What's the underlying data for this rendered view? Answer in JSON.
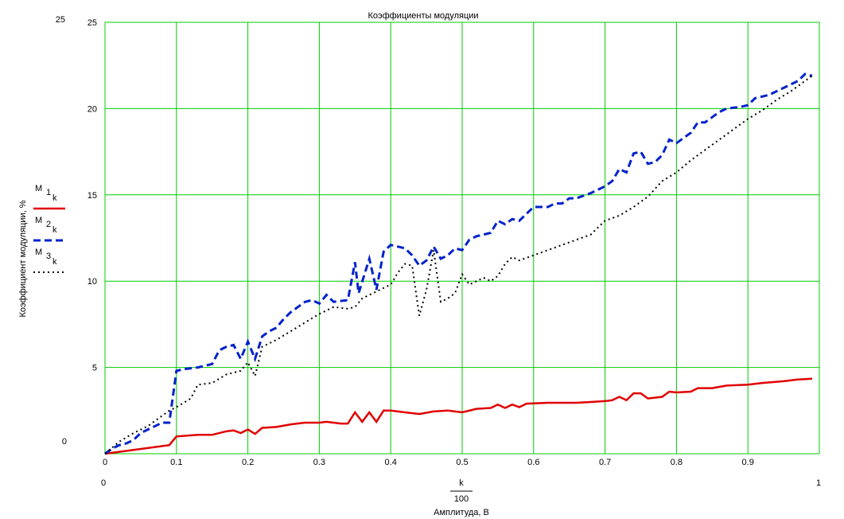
{
  "chart_data": {
    "type": "line",
    "title": "Коэффициенты модуляции",
    "y_label": "Коэффициент модуляции, %",
    "x_label_fraction": {
      "numerator": "k",
      "denominator": "100"
    },
    "x_label": "Амплитуда, В",
    "xlim": [
      0,
      1
    ],
    "ylim": [
      0,
      25
    ],
    "xticks": [
      0,
      0.1,
      0.2,
      0.3,
      0.4,
      0.5,
      0.6,
      0.7,
      0.8,
      0.9
    ],
    "yticks": [
      5,
      10,
      15,
      20,
      25
    ],
    "grid": true,
    "grid_color": "#00cc00",
    "legend": "left",
    "series": [
      {
        "name": "M",
        "name_subscripts": [
          "1",
          "k"
        ],
        "color": "#e00000",
        "dash": "solid",
        "x": [
          0,
          0.09,
          0.1,
          0.13,
          0.15,
          0.17,
          0.18,
          0.19,
          0.2,
          0.21,
          0.22,
          0.24,
          0.26,
          0.28,
          0.3,
          0.31,
          0.33,
          0.34,
          0.35,
          0.36,
          0.37,
          0.38,
          0.39,
          0.4,
          0.42,
          0.44,
          0.46,
          0.48,
          0.5,
          0.52,
          0.54,
          0.55,
          0.56,
          0.57,
          0.58,
          0.59,
          0.62,
          0.66,
          0.68,
          0.7,
          0.71,
          0.72,
          0.73,
          0.74,
          0.75,
          0.76,
          0.78,
          0.79,
          0.8,
          0.82,
          0.83,
          0.85,
          0.87,
          0.9,
          0.92,
          0.95,
          0.97,
          0.99
        ],
        "values": [
          0,
          0.5,
          1.0,
          1.1,
          1.1,
          1.3,
          1.35,
          1.2,
          1.4,
          1.15,
          1.5,
          1.55,
          1.7,
          1.8,
          1.8,
          1.85,
          1.75,
          1.75,
          2.4,
          1.85,
          2.4,
          1.85,
          2.5,
          2.5,
          2.4,
          2.3,
          2.45,
          2.5,
          2.4,
          2.6,
          2.65,
          2.85,
          2.65,
          2.85,
          2.7,
          2.9,
          2.95,
          2.95,
          3.0,
          3.05,
          3.1,
          3.3,
          3.1,
          3.5,
          3.5,
          3.2,
          3.3,
          3.6,
          3.55,
          3.6,
          3.8,
          3.8,
          3.95,
          4.0,
          4.1,
          4.2,
          4.3,
          4.35
        ]
      },
      {
        "name": "M",
        "name_subscripts": [
          "2",
          "k"
        ],
        "color": "#0022cc",
        "dash": "dashed",
        "x": [
          0,
          0.01,
          0.02,
          0.03,
          0.04,
          0.05,
          0.06,
          0.07,
          0.08,
          0.09,
          0.1,
          0.11,
          0.13,
          0.15,
          0.16,
          0.17,
          0.18,
          0.19,
          0.2,
          0.21,
          0.22,
          0.23,
          0.24,
          0.25,
          0.26,
          0.27,
          0.28,
          0.29,
          0.3,
          0.31,
          0.32,
          0.34,
          0.35,
          0.355,
          0.37,
          0.38,
          0.39,
          0.4,
          0.41,
          0.42,
          0.43,
          0.44,
          0.45,
          0.46,
          0.47,
          0.48,
          0.49,
          0.5,
          0.51,
          0.52,
          0.53,
          0.54,
          0.55,
          0.56,
          0.57,
          0.58,
          0.59,
          0.6,
          0.62,
          0.63,
          0.64,
          0.65,
          0.66,
          0.68,
          0.7,
          0.71,
          0.72,
          0.73,
          0.74,
          0.75,
          0.76,
          0.77,
          0.78,
          0.79,
          0.8,
          0.81,
          0.82,
          0.83,
          0.84,
          0.85,
          0.86,
          0.87,
          0.89,
          0.9,
          0.91,
          0.93,
          0.95,
          0.97,
          0.98,
          0.99
        ],
        "values": [
          0,
          0.3,
          0.5,
          0.6,
          0.8,
          1.2,
          1.4,
          1.6,
          1.8,
          1.8,
          4.8,
          4.9,
          5.0,
          5.2,
          6.0,
          6.2,
          6.3,
          5.5,
          6.5,
          5.5,
          6.8,
          7.1,
          7.3,
          7.8,
          8.2,
          8.5,
          8.8,
          8.9,
          8.7,
          9.2,
          8.8,
          8.9,
          11.1,
          9.3,
          11.3,
          9.5,
          11.7,
          12.1,
          12.0,
          11.9,
          11.5,
          10.9,
          11.2,
          12.0,
          11.3,
          11.5,
          11.9,
          11.8,
          12.4,
          12.6,
          12.7,
          12.8,
          13.5,
          13.3,
          13.6,
          13.5,
          13.9,
          14.3,
          14.3,
          14.5,
          14.5,
          14.8,
          14.8,
          15.1,
          15.5,
          15.8,
          16.5,
          16.3,
          17.4,
          17.5,
          16.8,
          16.9,
          17.3,
          18.2,
          18.0,
          18.3,
          18.6,
          19.2,
          19.2,
          19.5,
          19.8,
          20.0,
          20.1,
          20.2,
          20.6,
          20.8,
          21.2,
          21.6,
          22.0,
          21.9
        ]
      },
      {
        "name": "M",
        "name_subscripts": [
          "3",
          "k"
        ],
        "color": "#000000",
        "dash": "dotted",
        "x": [
          0,
          0.02,
          0.04,
          0.06,
          0.08,
          0.09,
          0.1,
          0.12,
          0.13,
          0.15,
          0.17,
          0.19,
          0.2,
          0.21,
          0.22,
          0.24,
          0.26,
          0.28,
          0.3,
          0.32,
          0.34,
          0.35,
          0.36,
          0.38,
          0.4,
          0.41,
          0.42,
          0.43,
          0.44,
          0.45,
          0.46,
          0.47,
          0.48,
          0.49,
          0.5,
          0.51,
          0.52,
          0.53,
          0.54,
          0.55,
          0.56,
          0.57,
          0.58,
          0.6,
          0.62,
          0.64,
          0.66,
          0.68,
          0.7,
          0.72,
          0.74,
          0.76,
          0.78,
          0.8,
          0.82,
          0.84,
          0.86,
          0.88,
          0.9,
          0.92,
          0.94,
          0.96,
          0.98,
          0.99
        ],
        "values": [
          0,
          0.7,
          1.2,
          1.6,
          2.2,
          2.5,
          2.7,
          3.2,
          4.0,
          4.1,
          4.6,
          4.8,
          5.3,
          4.5,
          6.2,
          6.6,
          7.1,
          7.6,
          8.1,
          8.5,
          8.4,
          8.5,
          9.0,
          9.4,
          9.8,
          10.5,
          11.0,
          10.9,
          8.0,
          9.5,
          11.8,
          8.8,
          9.0,
          9.3,
          10.4,
          9.8,
          10.0,
          10.2,
          10.0,
          10.3,
          11.0,
          11.4,
          11.2,
          11.5,
          11.8,
          12.1,
          12.4,
          12.7,
          13.5,
          13.8,
          14.3,
          14.9,
          15.8,
          16.3,
          17.0,
          17.6,
          18.2,
          18.8,
          19.4,
          19.9,
          20.5,
          21.0,
          21.6,
          21.9
        ]
      }
    ]
  }
}
